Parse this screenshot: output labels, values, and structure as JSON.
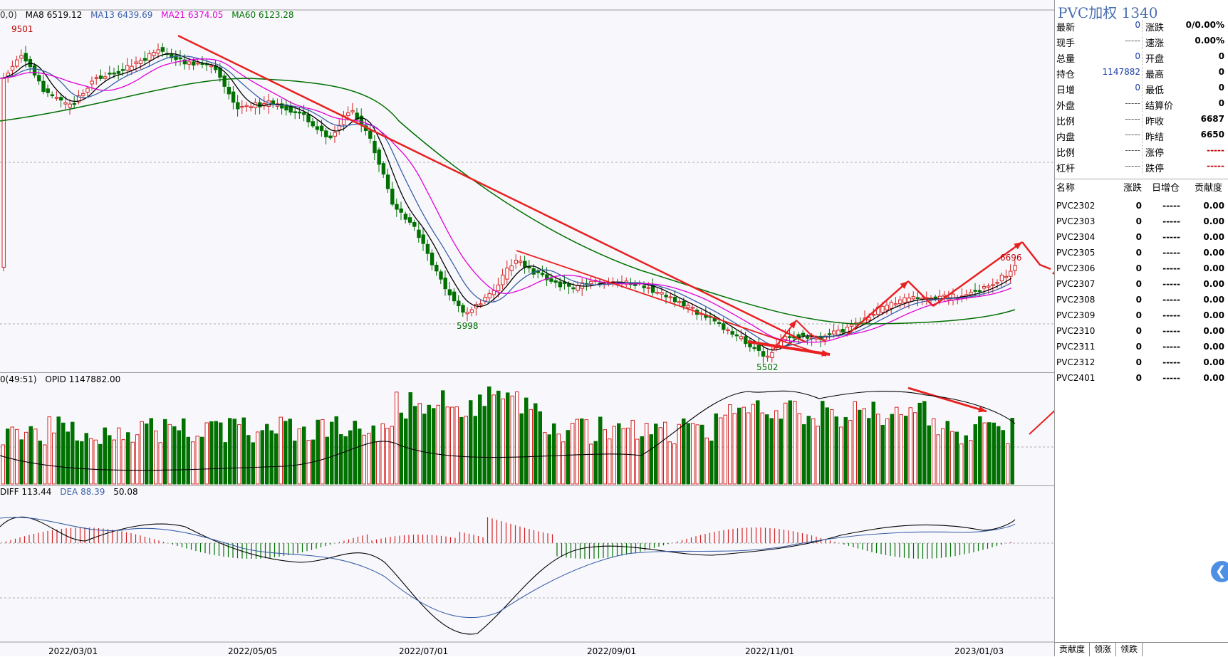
{
  "main_legend": {
    "prefix": "0,0)",
    "ma8": "MA8 6519.12",
    "ma13": "MA13 6439.69",
    "ma21": "MA21 6374.05",
    "ma60": "MA60 6123.28"
  },
  "volume_legend": {
    "prefix": "0(49:51)",
    "opid": "OPID 1147882.00"
  },
  "macd_legend": {
    "diff": "DIFF 113.44",
    "dea": "DEA 88.39",
    "macd": "50.08"
  },
  "price_annotations": {
    "high": "9501",
    "low_mid": "5998",
    "low": "5502",
    "last_high": "6696"
  },
  "x_axis_dates": [
    "2022/03/01",
    "2022/05/05",
    "2022/07/01",
    "2022/09/01",
    "2022/11/01",
    "2023/01/03"
  ],
  "colors": {
    "ma8": "#000000",
    "ma13": "#3a5fa8",
    "ma21": "#e000d8",
    "ma60": "#007000",
    "up": "#d42020",
    "down": "#007000",
    "arrow": "#e82020"
  },
  "chart_data": {
    "type": "candlestick",
    "series": [
      {
        "name": "MA8",
        "values": [
          6519.12
        ]
      },
      {
        "name": "MA13",
        "values": [
          6439.69
        ]
      },
      {
        "name": "MA21",
        "values": [
          6374.05
        ]
      },
      {
        "name": "MA60",
        "values": [
          6123.28
        ]
      }
    ],
    "annotations": [
      {
        "label": "9501",
        "x": "2022/03",
        "y": 9501
      },
      {
        "label": "5998",
        "x": "2022/07",
        "y": 5998
      },
      {
        "label": "5502",
        "x": "2022/10",
        "y": 5502
      },
      {
        "label": "6696",
        "x": "2023/01",
        "y": 6696
      }
    ],
    "x_ticks": [
      "2022/03/01",
      "2022/05/05",
      "2022/07/01",
      "2022/09/01",
      "2022/11/01",
      "2023/01/03"
    ]
  },
  "panel": {
    "title": "PVC加权  1340",
    "left_rows": [
      {
        "label": "最新",
        "value": "0"
      },
      {
        "label": "现手",
        "value": "-----"
      },
      {
        "label": "总量",
        "value": "0"
      },
      {
        "label": "持仓",
        "value": "1147882"
      },
      {
        "label": "日增",
        "value": "0"
      },
      {
        "label": "外盘",
        "value": "-----"
      },
      {
        "label": "比例",
        "value": "-----"
      },
      {
        "label": "内盘",
        "value": "-----"
      },
      {
        "label": "比例",
        "value": "-----"
      },
      {
        "label": "杠杆",
        "value": "-----"
      }
    ],
    "right_rows": [
      {
        "label": "涨跌",
        "value": "0/0.00%"
      },
      {
        "label": "速涨",
        "value": "0.00%"
      },
      {
        "label": "开盘",
        "value": "0"
      },
      {
        "label": "最高",
        "value": "0"
      },
      {
        "label": "最低",
        "value": "0"
      },
      {
        "label": "结算价",
        "value": "0"
      },
      {
        "label": "昨收",
        "value": "6687"
      },
      {
        "label": "昨结",
        "value": "6650"
      },
      {
        "label": "涨停",
        "value": "-----"
      },
      {
        "label": "跌停",
        "value": "-----"
      }
    ],
    "list_header": {
      "name": "名称",
      "change": "涨跌",
      "oi_change": "日增仓",
      "contribution": "贡献度"
    },
    "list": [
      {
        "name": "PVC2302",
        "change": "0",
        "oi": "-----",
        "contrib": "0.00"
      },
      {
        "name": "PVC2303",
        "change": "0",
        "oi": "-----",
        "contrib": "0.00"
      },
      {
        "name": "PVC2304",
        "change": "0",
        "oi": "-----",
        "contrib": "0.00"
      },
      {
        "name": "PVC2305",
        "change": "0",
        "oi": "-----",
        "contrib": "0.00"
      },
      {
        "name": "PVC2306",
        "change": "0",
        "oi": "-----",
        "contrib": "0.00"
      },
      {
        "name": "PVC2307",
        "change": "0",
        "oi": "-----",
        "contrib": "0.00"
      },
      {
        "name": "PVC2308",
        "change": "0",
        "oi": "-----",
        "contrib": "0.00"
      },
      {
        "name": "PVC2309",
        "change": "0",
        "oi": "-----",
        "contrib": "0.00"
      },
      {
        "name": "PVC2310",
        "change": "0",
        "oi": "-----",
        "contrib": "0.00"
      },
      {
        "name": "PVC2311",
        "change": "0",
        "oi": "-----",
        "contrib": "0.00"
      },
      {
        "name": "PVC2312",
        "change": "0",
        "oi": "-----",
        "contrib": "0.00"
      },
      {
        "name": "PVC2401",
        "change": "0",
        "oi": "-----",
        "contrib": "0.00"
      }
    ],
    "tabs": [
      "贡献度",
      "领涨",
      "领跌"
    ]
  }
}
